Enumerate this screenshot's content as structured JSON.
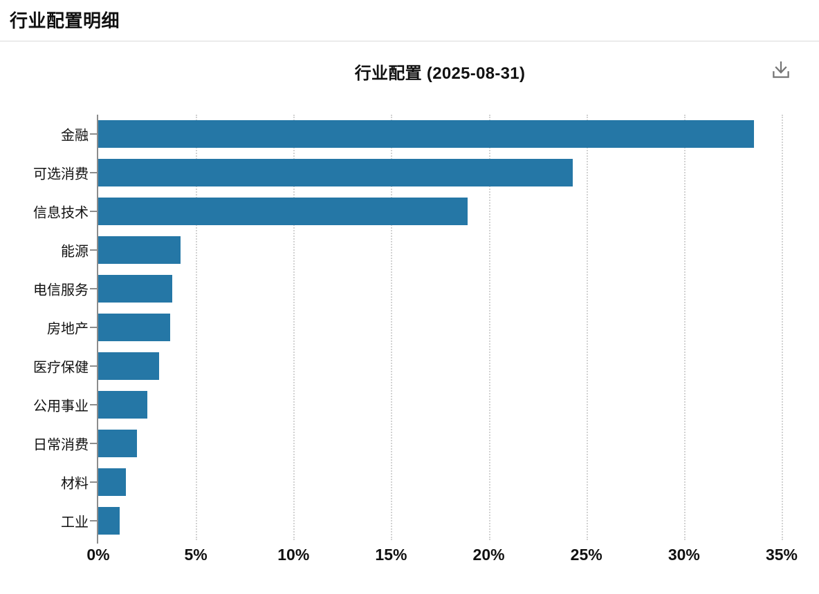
{
  "page": {
    "title": "行业配置明细"
  },
  "chart": {
    "download_icon": "download-icon",
    "icon_color": "#757575",
    "axis_color": "#8c8c8c",
    "gridline_color": "#d2d2d2"
  },
  "chart_data": {
    "type": "bar",
    "orientation": "horizontal",
    "title": "行业配置 (2025-08-31)",
    "categories": [
      "金融",
      "可选消费",
      "信息技术",
      "能源",
      "电信服务",
      "房地产",
      "医疗保健",
      "公用事业",
      "日常消费",
      "材料",
      "工业"
    ],
    "values": [
      33.6,
      24.3,
      18.9,
      4.2,
      3.8,
      3.7,
      3.1,
      2.5,
      2.0,
      1.4,
      1.1
    ],
    "unit": "%",
    "xlim": [
      0,
      35
    ],
    "x_tick_step": 5,
    "x_tick_labels": [
      "0%",
      "5%",
      "10%",
      "15%",
      "20%",
      "25%",
      "30%",
      "35%"
    ],
    "bar_color": "#2577A6",
    "grid": "vertical-dotted",
    "legend": "none"
  }
}
